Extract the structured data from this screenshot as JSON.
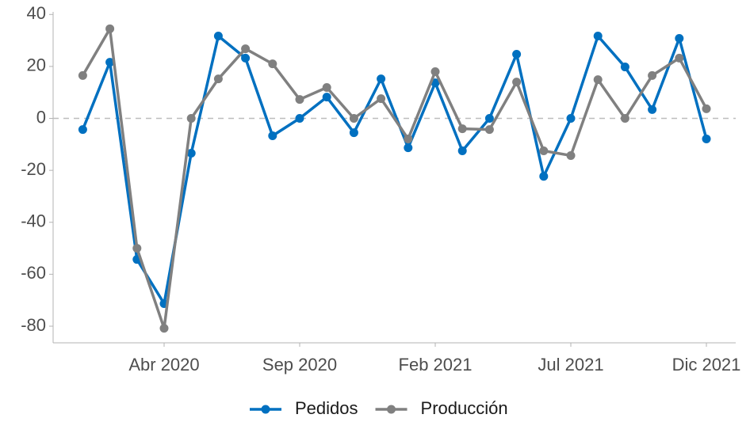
{
  "chart_data": {
    "type": "line",
    "x": [
      "2020-01",
      "2020-02",
      "2020-03",
      "2020-04",
      "2020-05",
      "2020-06",
      "2020-07",
      "2020-08",
      "2020-09",
      "2020-10",
      "2020-11",
      "2020-12",
      "2021-01",
      "2021-02",
      "2021-03",
      "2021-04",
      "2021-05",
      "2021-06",
      "2021-07",
      "2021-08",
      "2021-09",
      "2021-10",
      "2021-11",
      "2021-12"
    ],
    "series": [
      {
        "name": "Pedidos",
        "color": "#0070c0",
        "values": [
          -4.3,
          21.6,
          -54.3,
          -71.3,
          -13.4,
          31.7,
          23.2,
          -6.7,
          0,
          8.2,
          -5.5,
          15.2,
          -11.3,
          13.7,
          -12.5,
          0,
          24.7,
          -22.3,
          0,
          31.7,
          19.8,
          3.4,
          30.8,
          -7.9
        ]
      },
      {
        "name": "Producción",
        "color": "#808080",
        "values": [
          16.5,
          34.5,
          -50,
          -80.8,
          0,
          15.2,
          26.8,
          21,
          7.3,
          11.9,
          0,
          7.6,
          -7.9,
          18,
          -4,
          -4.3,
          14,
          -12.5,
          -14.3,
          14.9,
          0,
          16.5,
          23.2,
          3.7
        ]
      }
    ],
    "ylim": [
      -86.4,
      41
    ],
    "yticks": [
      -80,
      -60,
      -40,
      -20,
      0,
      20,
      40
    ],
    "xticks": [
      {
        "value": "2020-04",
        "label": "Abr 2020"
      },
      {
        "value": "2020-09",
        "label": "Sep 2020"
      },
      {
        "value": "2021-02",
        "label": "Feb 2021"
      },
      {
        "value": "2021-07",
        "label": "Jul 2021"
      },
      {
        "value": "2021-12",
        "label": "Dic 2021"
      }
    ],
    "reference_line": 0,
    "legend": "bottom"
  }
}
